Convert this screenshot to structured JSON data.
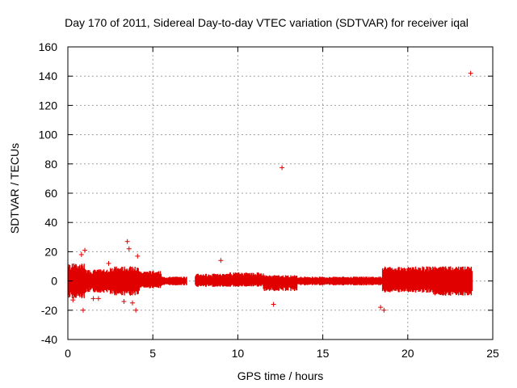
{
  "chart_data": {
    "type": "scatter",
    "title": "Day 170 of 2011, Sidereal Day-to-day VTEC variation (SDTVAR) for receiver iqal",
    "xlabel": "GPS time / hours",
    "ylabel": "SDTVAR / TECUs",
    "xlim": [
      0,
      25
    ],
    "ylim": [
      -40,
      160
    ],
    "xticks": [
      0,
      5,
      10,
      15,
      20,
      25
    ],
    "yticks": [
      -40,
      -20,
      0,
      20,
      40,
      60,
      80,
      100,
      120,
      140,
      160
    ],
    "grid": true,
    "marker": "+",
    "color": "#e00000",
    "series": [
      {
        "name": "SDTVAR",
        "bands": [
          {
            "from": 0.0,
            "to": 1.0,
            "low": -12,
            "high": 12
          },
          {
            "from": 1.0,
            "to": 2.5,
            "low": -8,
            "high": 8
          },
          {
            "from": 2.5,
            "to": 4.2,
            "low": -10,
            "high": 10
          },
          {
            "from": 4.2,
            "to": 5.5,
            "low": -5,
            "high": 7
          },
          {
            "from": 5.5,
            "to": 7.0,
            "low": -3,
            "high": 3
          },
          {
            "from": 7.5,
            "to": 9.5,
            "low": -4,
            "high": 5
          },
          {
            "from": 9.5,
            "to": 11.5,
            "low": -4,
            "high": 6
          },
          {
            "from": 11.5,
            "to": 13.5,
            "low": -7,
            "high": 4
          },
          {
            "from": 13.5,
            "to": 18.5,
            "low": -3,
            "high": 3
          },
          {
            "from": 18.5,
            "to": 21.5,
            "low": -8,
            "high": 10
          },
          {
            "from": 21.5,
            "to": 23.8,
            "low": -10,
            "high": 10
          }
        ],
        "outliers": [
          {
            "x": 0.3,
            "y": -13
          },
          {
            "x": 0.8,
            "y": 18
          },
          {
            "x": 0.9,
            "y": -20
          },
          {
            "x": 1.0,
            "y": 21
          },
          {
            "x": 1.5,
            "y": -12
          },
          {
            "x": 1.8,
            "y": -12
          },
          {
            "x": 2.4,
            "y": 12
          },
          {
            "x": 3.3,
            "y": -14
          },
          {
            "x": 3.5,
            "y": 27
          },
          {
            "x": 3.6,
            "y": 22
          },
          {
            "x": 3.8,
            "y": -15
          },
          {
            "x": 4.0,
            "y": -20
          },
          {
            "x": 4.1,
            "y": 17
          },
          {
            "x": 9.0,
            "y": 14
          },
          {
            "x": 12.1,
            "y": -16
          },
          {
            "x": 12.6,
            "y": 77.5
          },
          {
            "x": 18.4,
            "y": -18
          },
          {
            "x": 18.6,
            "y": -20
          },
          {
            "x": 23.7,
            "y": 142
          }
        ]
      }
    ]
  }
}
